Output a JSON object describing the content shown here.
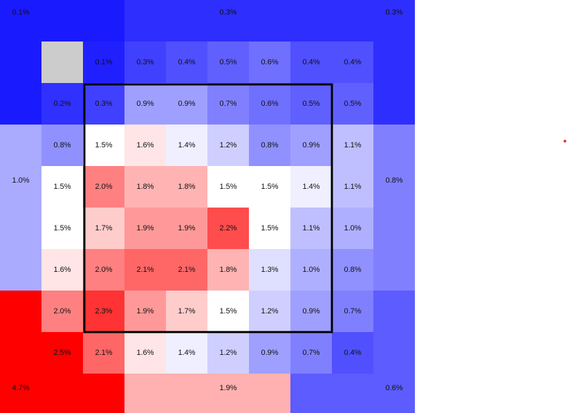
{
  "chart_data": {
    "type": "heatmap",
    "value_format": "percent",
    "color_scale": {
      "low": "#2020ff",
      "mid": "#ffffff",
      "high": "#ff0000",
      "mid_value": 1.5,
      "min": 0.1,
      "max": 2.5,
      "missing": "#cccccc"
    },
    "strike_zone": {
      "rows": [
        [
          0.3,
          0.9,
          0.9,
          0.7,
          0.6,
          0.5
        ],
        [
          1.5,
          1.6,
          1.4,
          1.2,
          0.8,
          0.9
        ],
        [
          2.0,
          1.8,
          1.8,
          1.5,
          1.5,
          1.4
        ],
        [
          1.7,
          1.9,
          1.9,
          2.2,
          1.5,
          1.1
        ],
        [
          2.0,
          2.1,
          2.1,
          1.8,
          1.3,
          1.0
        ],
        [
          2.3,
          1.9,
          1.7,
          1.5,
          1.2,
          0.9
        ]
      ]
    },
    "ring": {
      "top": [
        0.1,
        0.3,
        0.4,
        0.5,
        0.6,
        0.4,
        0.4
      ],
      "left": [
        0.2,
        0.8,
        1.5,
        1.5,
        1.6,
        2.0
      ],
      "right": [
        0.5,
        1.1,
        1.1,
        1.0,
        0.8,
        0.7
      ],
      "bottom": [
        2.5,
        2.1,
        1.6,
        1.4,
        1.2,
        0.9,
        0.7,
        0.4
      ],
      "missing_corner": null
    },
    "outer_zones": {
      "top_left": {
        "value": 0.1,
        "color": "#1a1aff"
      },
      "top": {
        "value": 0.3,
        "color": "#2e2eff"
      },
      "top_right": {
        "value": 0.3,
        "color": "#2e2eff"
      },
      "left": {
        "value": 1.0,
        "color": "#aaaaff"
      },
      "right": {
        "value": 0.8,
        "color": "#8080ff"
      },
      "bottom_left": {
        "value": 4.7,
        "color": "#ff0000"
      },
      "bottom": {
        "value": 1.9,
        "color": "#ffb0b0"
      },
      "bottom_right": {
        "value": 0.6,
        "color": "#5c5cff"
      }
    }
  }
}
